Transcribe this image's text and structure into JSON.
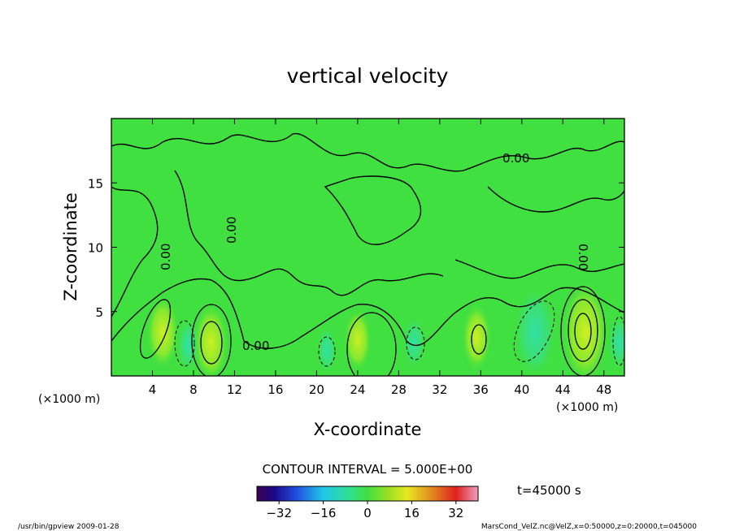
{
  "chart_data": {
    "type": "heatmap",
    "title": "vertical velocity",
    "xlabel": "X-coordinate",
    "ylabel": "Z-coordinate",
    "x_unit_label": "(×1000 m)",
    "z_unit_label": "(×1000 m)",
    "xlim": [
      0,
      50
    ],
    "ylim": [
      0,
      20
    ],
    "xticks": [
      4,
      8,
      12,
      16,
      20,
      24,
      28,
      32,
      36,
      40,
      44,
      48
    ],
    "yticks": [
      5,
      10,
      15
    ],
    "grid": false,
    "contour_interval_text": "CONTOUR INTERVAL = 5.000E+00",
    "contour_label": "0.00",
    "time_text": "t=45000 s",
    "colorbar": {
      "range": [
        -40,
        40
      ],
      "ticks": [
        -32,
        -16,
        0,
        16,
        32
      ],
      "colormap": "rainbow (dark blue → cyan → green → yellow → red → pink)"
    },
    "features": [
      {
        "x": 5,
        "z": 3.4,
        "value": 8,
        "sign": "positive"
      },
      {
        "x": 7.5,
        "z": 2.4,
        "value": -4,
        "sign": "negative"
      },
      {
        "x": 9.7,
        "z": 2.6,
        "value": 9,
        "sign": "positive"
      },
      {
        "x": 21,
        "z": 2.0,
        "value": -3,
        "sign": "negative"
      },
      {
        "x": 24,
        "z": 2.8,
        "value": 6,
        "sign": "positive"
      },
      {
        "x": 29.5,
        "z": 2.6,
        "value": -4,
        "sign": "negative"
      },
      {
        "x": 35.6,
        "z": 3.0,
        "value": 7,
        "sign": "positive"
      },
      {
        "x": 41.3,
        "z": 3.4,
        "value": -12,
        "sign": "negative"
      },
      {
        "x": 46.2,
        "z": 3.4,
        "value": 14,
        "sign": "positive"
      },
      {
        "x": 49.5,
        "z": 2.6,
        "value": -4,
        "sign": "negative"
      }
    ]
  },
  "footer": {
    "left_text": "/usr/bin/gpview  2009-01-28",
    "right_text": "MarsCond_VelZ.nc@VelZ,x=0:50000,z=0:20000,t=045000"
  }
}
